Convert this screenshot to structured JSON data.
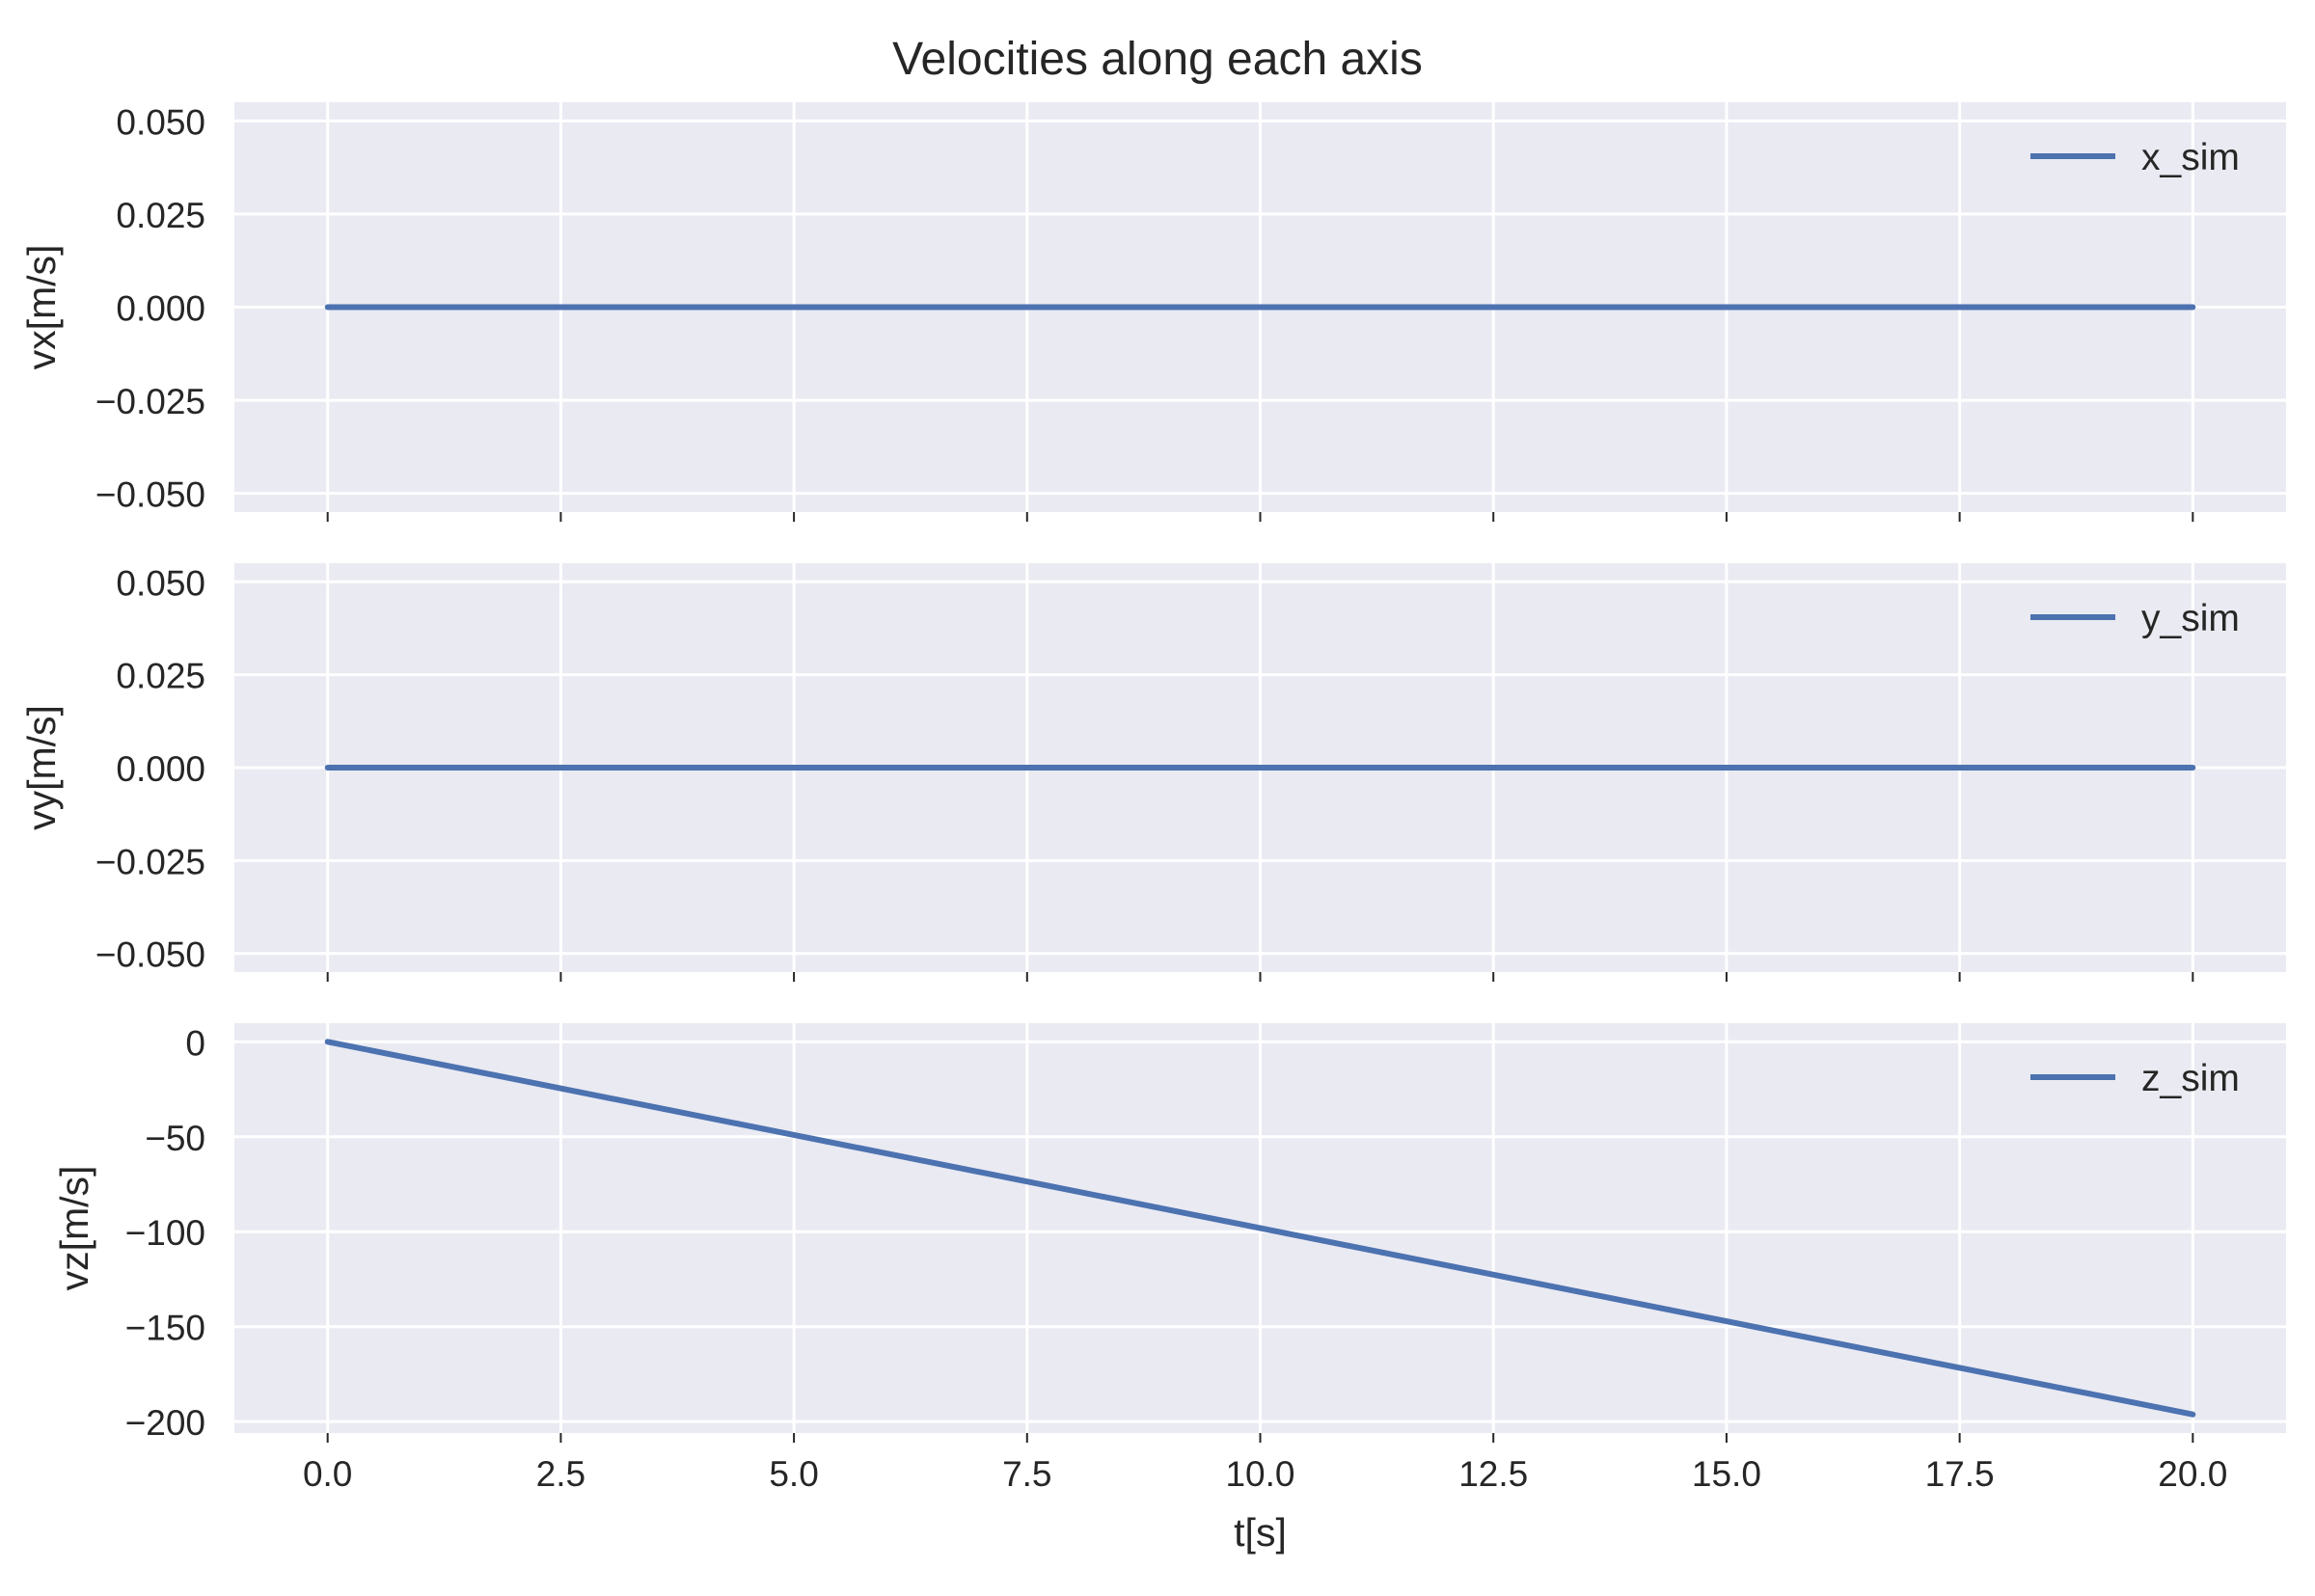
{
  "title": "Velocities along each axis",
  "xlabel": "t[s]",
  "chart_data": [
    {
      "type": "line",
      "ylabel": "vx[m/s]",
      "x": [
        0,
        20
      ],
      "series": [
        {
          "name": "x_sim",
          "values": [
            0,
            0
          ]
        }
      ],
      "xlim": [
        -1,
        21
      ],
      "ylim": [
        -0.055,
        0.055
      ],
      "yticks": [
        0.05,
        0.025,
        0.0,
        -0.025,
        -0.05
      ],
      "ytick_labels": [
        "0.050",
        "0.025",
        "0.000",
        "−0.025",
        "−0.050"
      ],
      "legend": "upper right",
      "grid": true
    },
    {
      "type": "line",
      "ylabel": "vy[m/s]",
      "x": [
        0,
        20
      ],
      "series": [
        {
          "name": "y_sim",
          "values": [
            0,
            0
          ]
        }
      ],
      "xlim": [
        -1,
        21
      ],
      "ylim": [
        -0.055,
        0.055
      ],
      "yticks": [
        0.05,
        0.025,
        0.0,
        -0.025,
        -0.05
      ],
      "ytick_labels": [
        "0.050",
        "0.025",
        "0.000",
        "−0.025",
        "−0.050"
      ],
      "legend": "upper right",
      "grid": true
    },
    {
      "type": "line",
      "ylabel": "vz[m/s]",
      "x": [
        0,
        20
      ],
      "series": [
        {
          "name": "z_sim",
          "values": [
            0,
            -196.2
          ]
        }
      ],
      "xlim": [
        -1,
        21
      ],
      "ylim": [
        -206,
        9.8
      ],
      "yticks": [
        0,
        -50,
        -100,
        -150,
        -200
      ],
      "ytick_labels": [
        "0",
        "−50",
        "−100",
        "−150",
        "−200"
      ],
      "xticks": [
        0,
        2.5,
        5,
        7.5,
        10,
        12.5,
        15,
        17.5,
        20
      ],
      "xtick_labels": [
        "0.0",
        "2.5",
        "5.0",
        "7.5",
        "10.0",
        "12.5",
        "15.0",
        "17.5",
        "20.0"
      ],
      "legend": "upper right",
      "grid": true
    }
  ],
  "colors": {
    "axes_bg": "#eaeaf2",
    "grid": "#ffffff",
    "line": "#4c72b0",
    "text": "#262626"
  }
}
